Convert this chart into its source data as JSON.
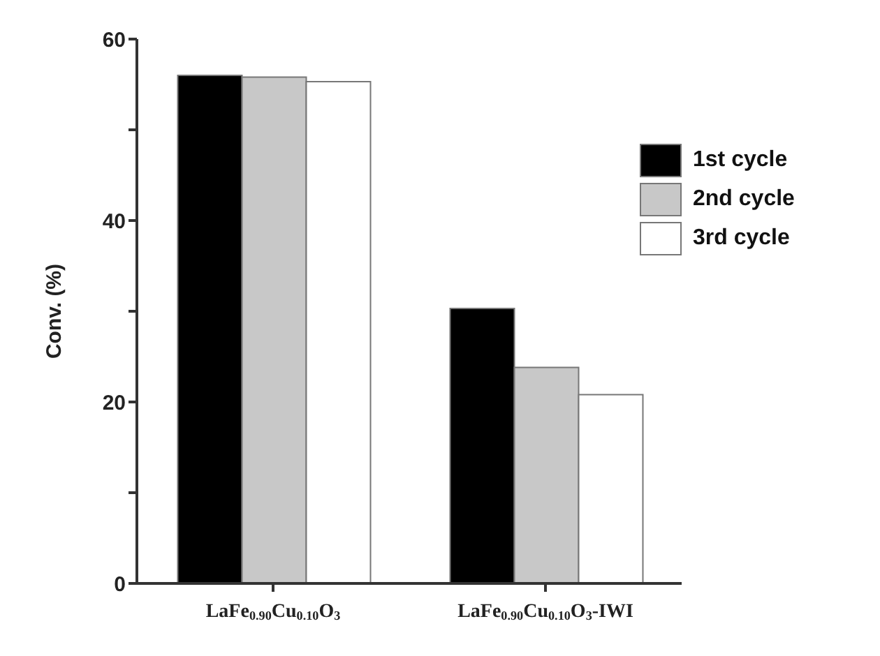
{
  "chart_data": {
    "type": "bar",
    "ylabel": "Conv. (%)",
    "categories": [
      "LaFe$_{0.90}$Cu$_{0.10}$O$_{3}$",
      "LaFe$_{0.90}$Cu$_{0.10}$O$_{3}$-IWI"
    ],
    "series": [
      {
        "name": "1st cycle",
        "color": "#000000",
        "values": [
          56.0,
          30.3
        ]
      },
      {
        "name": "2nd cycle",
        "color": "#c8c8c8",
        "values": [
          55.8,
          23.8
        ]
      },
      {
        "name": "3rd cycle",
        "color": "#ffffff",
        "values": [
          55.3,
          20.8
        ]
      }
    ],
    "ylim": [
      0,
      60
    ],
    "yticks": [
      0,
      {
        "value": 10,
        "label": null
      },
      20,
      {
        "value": 30,
        "label": null
      },
      40,
      {
        "value": 50,
        "label": null
      },
      60
    ],
    "grid": false,
    "legend": "top right"
  }
}
